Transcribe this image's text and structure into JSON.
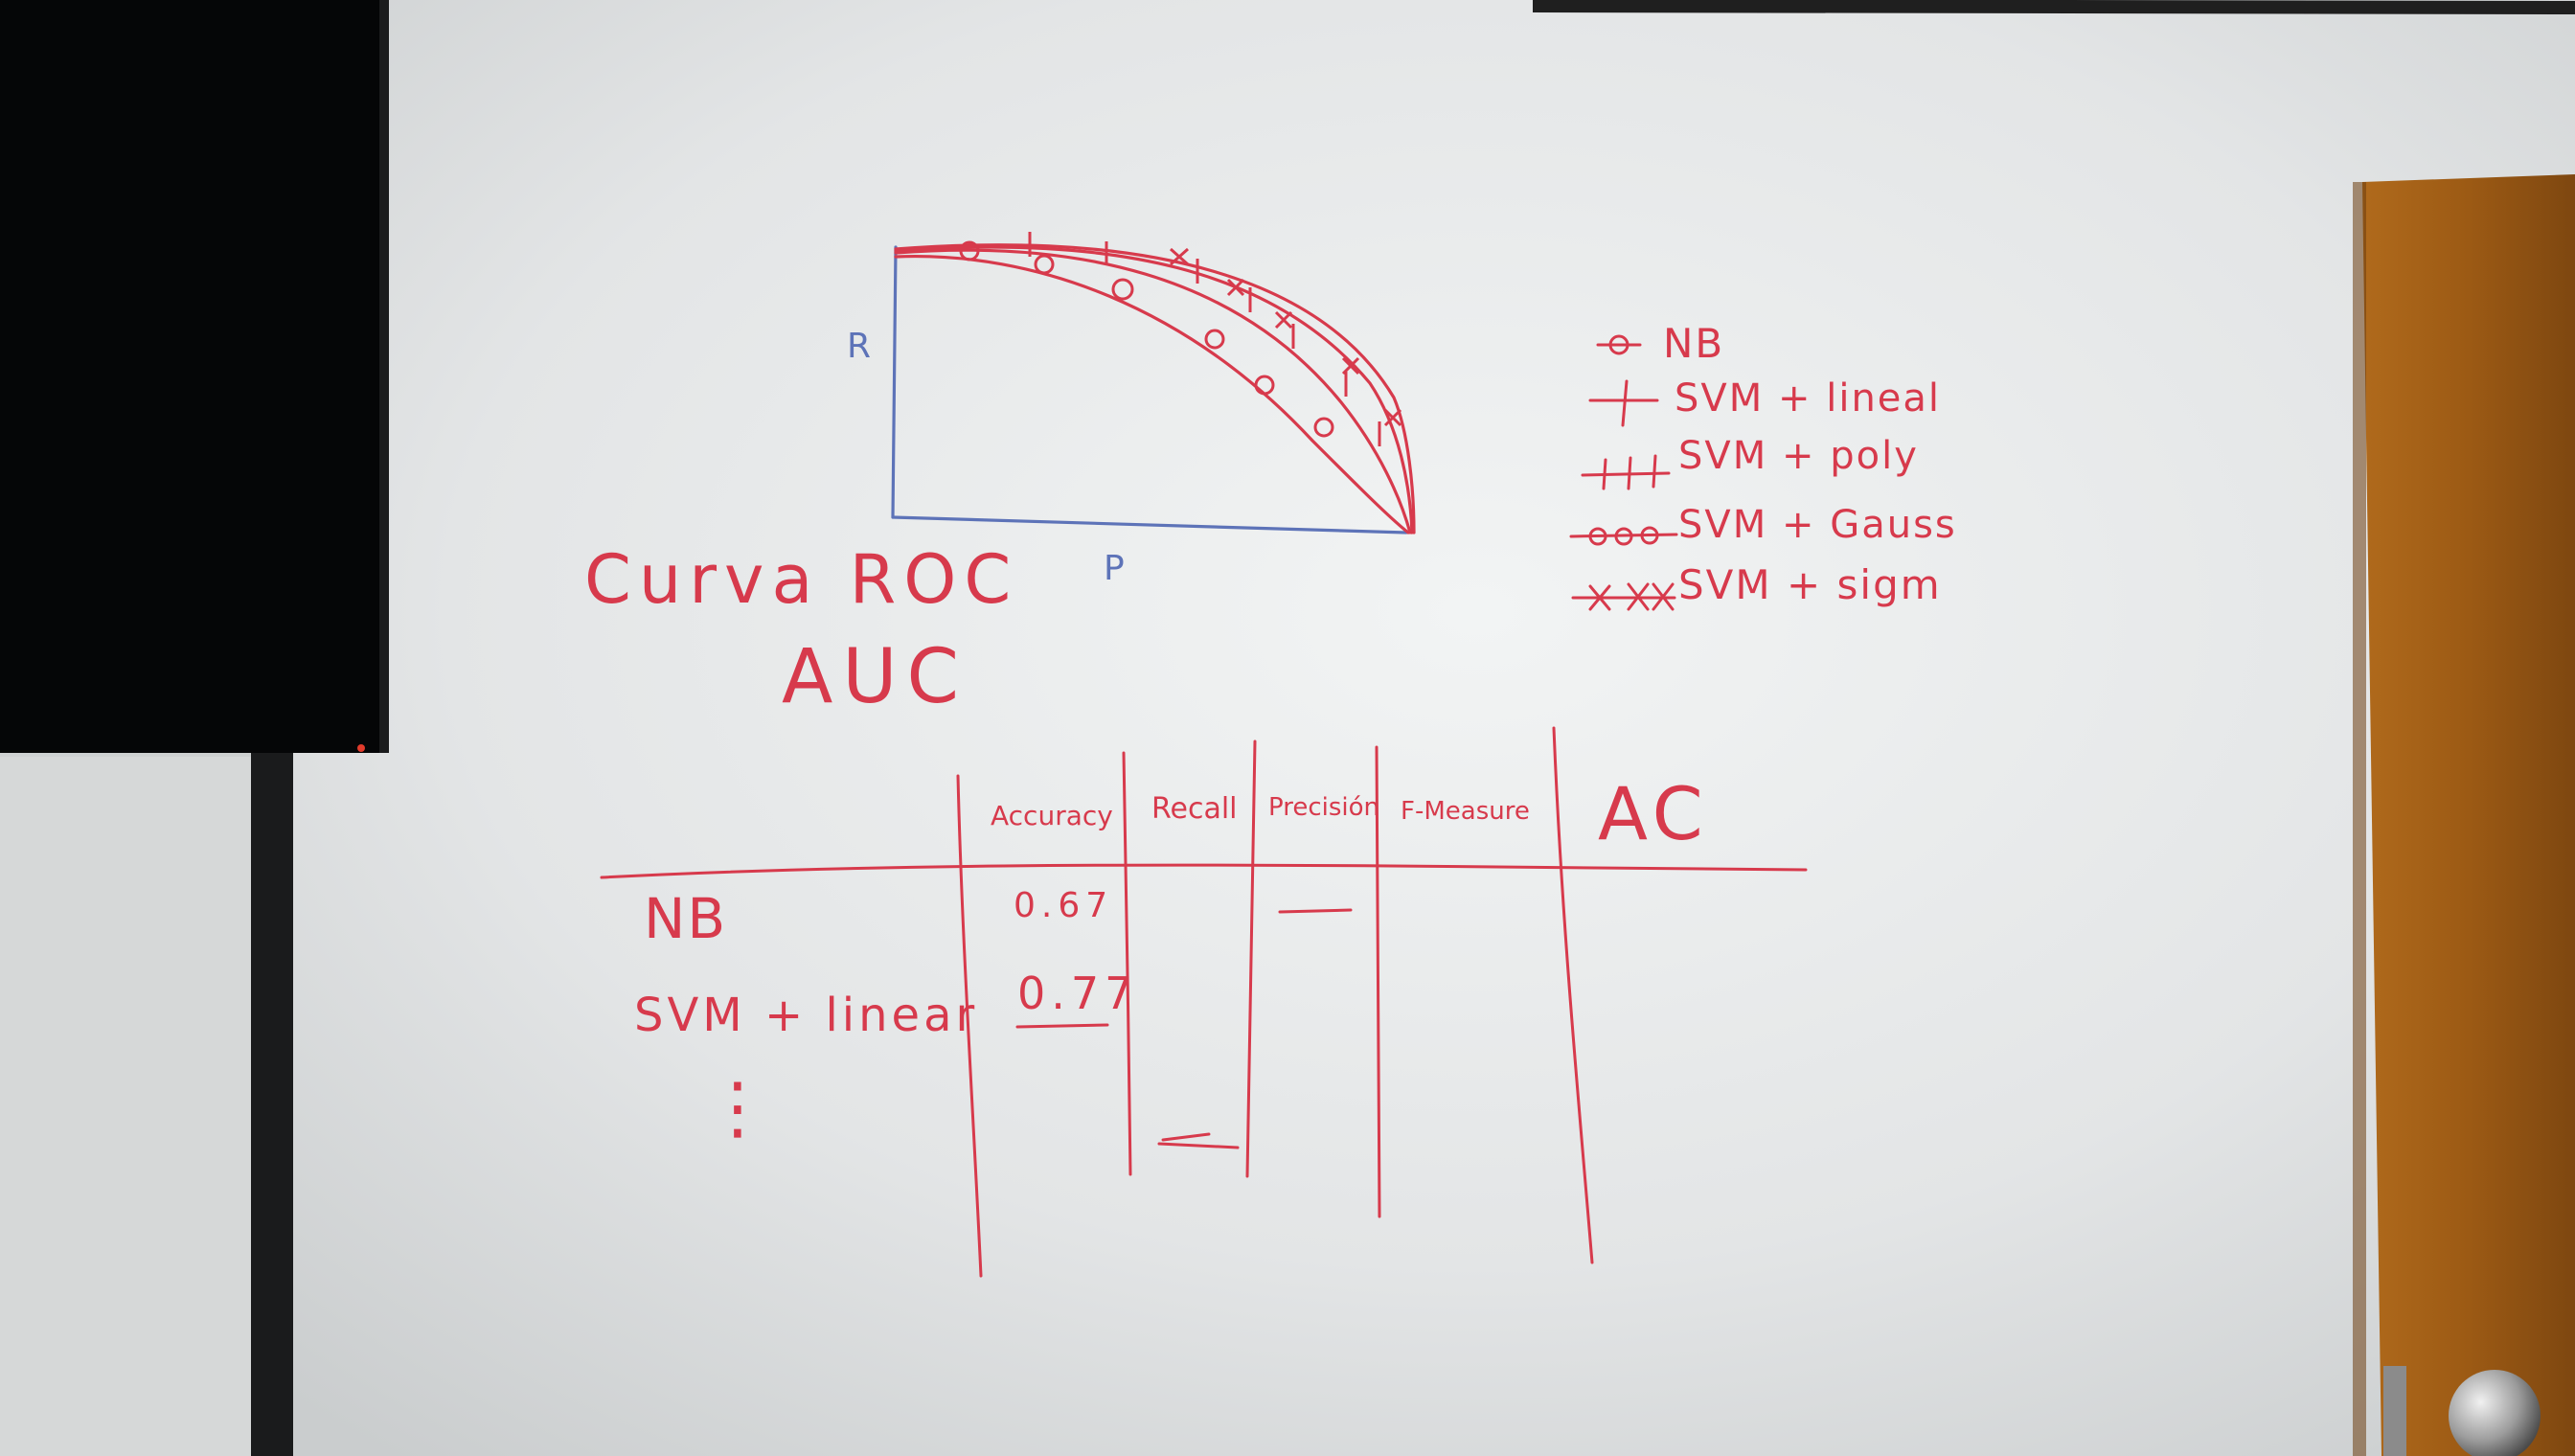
{
  "colors": {
    "marker_red": "#d73a4c",
    "marker_blue": "#5d73b8",
    "board": "#e6e8e8",
    "monitor": "#060708",
    "door": "#9a5a18"
  },
  "icons": {
    "nb_marker": "circle-on-line",
    "svm_linear_marker": "plus-tick",
    "svm_poly_marker": "double-tick",
    "svm_gauss_marker": "double-circle",
    "svm_sigm_marker": "asterisk"
  },
  "board": {
    "title": "Curva ROC",
    "subtitle": "AUC",
    "plot": {
      "y_axis_label": "R",
      "x_axis_label": "P"
    },
    "legend": [
      {
        "label": "NB"
      },
      {
        "label": "SVM + lineal"
      },
      {
        "label": "SVM + poly"
      },
      {
        "label": "SVM + Gauss"
      },
      {
        "label": "SVM + sigm"
      }
    ],
    "table": {
      "headers": [
        "Accuracy",
        "Recall",
        "Precisión",
        "F-Measure",
        "AC"
      ],
      "rows": [
        {
          "label": "NB",
          "accuracy": "0.67"
        },
        {
          "label": "SVM + linear",
          "accuracy": "0.77"
        }
      ],
      "ellipsis": "⋮"
    }
  }
}
